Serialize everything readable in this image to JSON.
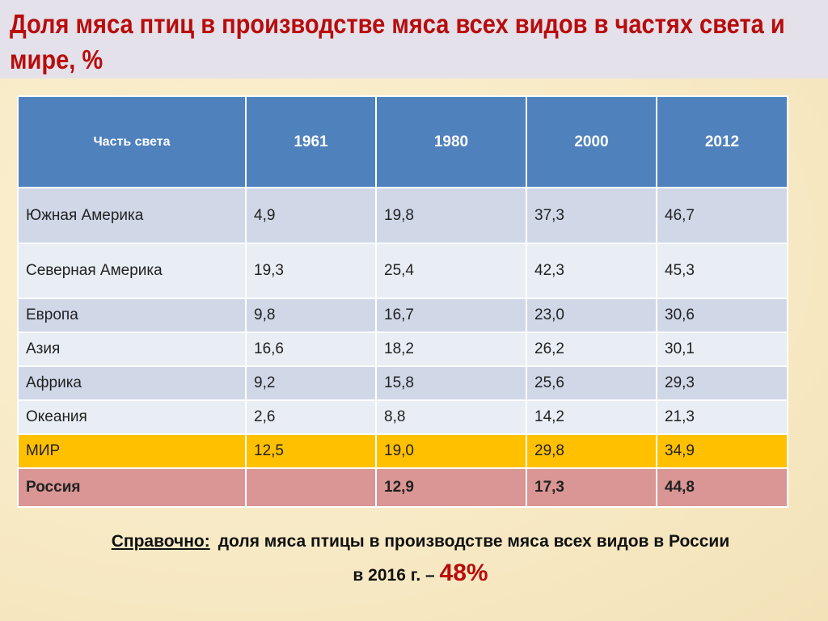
{
  "title": "Доля мяса птиц в производстве мяса всех видов в частях света и мире, %",
  "table": {
    "headers": [
      "Часть света",
      "1961",
      "1980",
      "2000",
      "2012"
    ],
    "rows": [
      [
        "Южная Америка",
        "4,9",
        "19,8",
        "37,3",
        "46,7"
      ],
      [
        "Северная Америка",
        "19,3",
        "25,4",
        "42,3",
        "45,3"
      ],
      [
        "Европа",
        "9,8",
        "16,7",
        "23,0",
        "30,6"
      ],
      [
        "Азия",
        "16,6",
        "18,2",
        "26,2",
        "30,1"
      ],
      [
        "Африка",
        "9,2",
        "15,8",
        "25,6",
        "29,3"
      ],
      [
        "Океания",
        "2,6",
        "8,8",
        "14,2",
        "21,3"
      ],
      [
        "МИР",
        "12,5",
        "19,0",
        "29,8",
        "34,9"
      ],
      [
        "Россия",
        "",
        "12,9",
        "17,3",
        "44,8"
      ]
    ]
  },
  "note": {
    "label": "Справочно:",
    "text": "доля мяса птицы в производстве мяса всех видов в России",
    "line2": "в 2016 г. –",
    "value": "48%"
  },
  "colors": {
    "header": "#4f81bd",
    "title": "#b80c0c",
    "world_row": "#ffc000",
    "russia_row": "#d99694"
  }
}
